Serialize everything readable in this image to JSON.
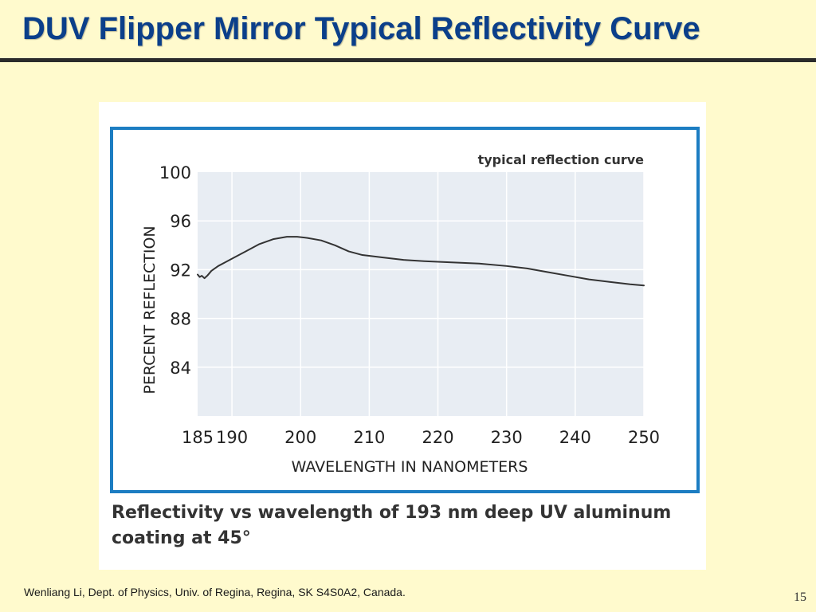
{
  "slide": {
    "title": "DUV Flipper Mirror Typical Reflectivity Curve",
    "footer": "Wenliang Li, Dept. of Physics, Univ. of Regina, Regina, SK S4S0A2, Canada.",
    "page_number": "15"
  },
  "figure": {
    "caption": "Reflectivity vs wavelength of 193 nm deep UV aluminum coating at 45°"
  },
  "colors": {
    "background": "#FFFACD",
    "title": "#0B3F8A",
    "frame": "#1C7DC2",
    "plot_area": "#E8EDF3",
    "curve": "#333333"
  },
  "chart_data": {
    "type": "line",
    "title": "typical reflection curve",
    "xlabel": "WAVELENGTH IN NANOMETERS",
    "ylabel": "PERCENT REFLECTION",
    "xlim": [
      185,
      250
    ],
    "ylim": [
      80,
      100
    ],
    "xticks": [
      185,
      190,
      200,
      210,
      220,
      230,
      240,
      250
    ],
    "yticks": [
      84,
      88,
      92,
      96,
      100
    ],
    "grid": true,
    "x": [
      185.0,
      185.3,
      185.6,
      186.0,
      186.4,
      187.0,
      188.0,
      189.0,
      190.0,
      192.0,
      194.0,
      196.0,
      198.0,
      199.5,
      201.0,
      203.0,
      205.0,
      207.0,
      209.0,
      212.0,
      215.0,
      218.0,
      222.0,
      226.0,
      230.0,
      233.0,
      236.0,
      239.0,
      242.0,
      245.0,
      248.0,
      250.0
    ],
    "y": [
      91.6,
      91.4,
      91.5,
      91.3,
      91.5,
      91.9,
      92.3,
      92.6,
      92.9,
      93.5,
      94.1,
      94.5,
      94.7,
      94.7,
      94.6,
      94.4,
      94.0,
      93.5,
      93.2,
      93.0,
      92.8,
      92.7,
      92.6,
      92.5,
      92.3,
      92.1,
      91.8,
      91.5,
      91.2,
      91.0,
      90.8,
      90.7
    ]
  }
}
